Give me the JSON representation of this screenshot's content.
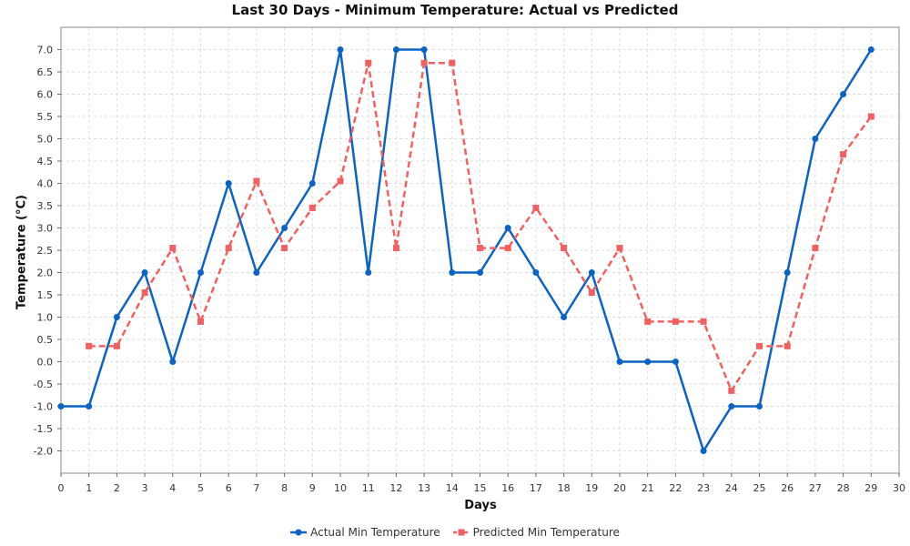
{
  "chart_data": {
    "type": "line",
    "title": "Last 30 Days - Minimum Temperature: Actual vs Predicted",
    "xlabel": "Days",
    "ylabel": "Temperature (°C)",
    "xlim": [
      0,
      30
    ],
    "ylim": [
      -2.5,
      7.5
    ],
    "xticks": [
      0,
      1,
      2,
      3,
      4,
      5,
      6,
      7,
      8,
      9,
      10,
      11,
      12,
      13,
      14,
      15,
      16,
      17,
      18,
      19,
      20,
      21,
      22,
      23,
      24,
      25,
      26,
      27,
      28,
      29,
      30
    ],
    "yticks": [
      -2.0,
      -1.5,
      -1.0,
      -0.5,
      0.0,
      0.5,
      1.0,
      1.5,
      2.0,
      2.5,
      3.0,
      3.5,
      4.0,
      4.5,
      5.0,
      5.5,
      6.0,
      6.5,
      7.0
    ],
    "grid": true,
    "legend_position": "bottom",
    "series": [
      {
        "name": "Actual Min Temperature",
        "color": "#0b63c4",
        "marker": "circle",
        "style": "solid",
        "x": [
          0,
          1,
          2,
          3,
          4,
          5,
          6,
          7,
          8,
          9,
          10,
          11,
          12,
          13,
          14,
          15,
          16,
          17,
          18,
          19,
          20,
          21,
          22,
          23,
          24,
          25,
          26,
          27,
          28,
          29
        ],
        "values": [
          -1,
          -1,
          1,
          2,
          0,
          2,
          4,
          2,
          3,
          4,
          7,
          2,
          7,
          7,
          2,
          2,
          3,
          2,
          1,
          2,
          0,
          0,
          0,
          -2,
          -1,
          -1,
          2,
          5,
          6,
          7
        ]
      },
      {
        "name": "Predicted Min Temperature",
        "color": "#f26060",
        "marker": "square",
        "style": "dashed",
        "x": [
          1,
          2,
          3,
          4,
          5,
          6,
          7,
          8,
          9,
          10,
          11,
          12,
          13,
          14,
          15,
          16,
          17,
          18,
          19,
          20,
          21,
          22,
          23,
          24,
          25,
          26,
          27,
          28,
          29
        ],
        "values": [
          0.35,
          0.35,
          1.55,
          2.55,
          0.9,
          2.55,
          4.05,
          2.55,
          3.45,
          4.05,
          6.7,
          2.55,
          6.7,
          6.7,
          2.55,
          2.55,
          3.45,
          2.55,
          1.55,
          2.55,
          0.9,
          0.9,
          0.9,
          -0.65,
          0.35,
          0.35,
          2.55,
          4.65,
          5.5
        ]
      }
    ]
  }
}
